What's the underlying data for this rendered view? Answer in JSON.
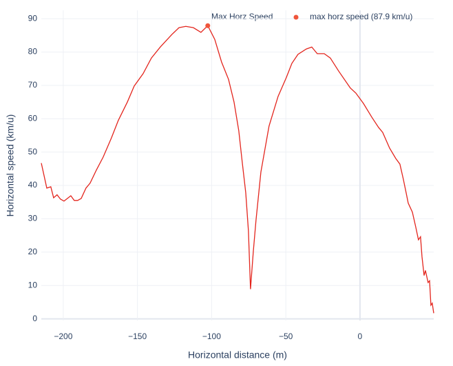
{
  "chart_data": {
    "type": "line",
    "xlabel": "Horizontal distance (m)",
    "ylabel": "Horizontal speed (km/u)",
    "legend_title": "Max Horz Speed",
    "legend_position": "top-right",
    "grid": true,
    "xlim": [
      -214.8,
      49.7
    ],
    "ylim": [
      -0.5,
      92.5
    ],
    "xticks": [
      {
        "value": -200,
        "label": "−200"
      },
      {
        "value": -150,
        "label": "−150"
      },
      {
        "value": -100,
        "label": "−100"
      },
      {
        "value": -50,
        "label": "−50"
      },
      0
    ],
    "yticks": [
      0,
      10,
      20,
      30,
      40,
      50,
      60,
      70,
      80,
      90
    ],
    "series": [
      {
        "color": "#e3241c",
        "mode": "lines",
        "x": [
          -214.8,
          -211.1,
          -208.4,
          -206.5,
          -204.2,
          -201.9,
          -199.5,
          -197.2,
          -194.9,
          -192.6,
          -190.3,
          -187.9,
          -184.7,
          -181.9,
          -177.7,
          -173.1,
          -167.5,
          -162.9,
          -156.8,
          -152.2,
          -146.2,
          -140.6,
          -134.6,
          -126.7,
          -122,
          -117.4,
          -112.3,
          -107.2,
          -102.6,
          -97.9,
          -93.3,
          -88.6,
          -84.9,
          -81.7,
          -79.4,
          -77,
          -75.2,
          -73.8,
          -71.9,
          -70.1,
          -66.8,
          -61.3,
          -55.2,
          -49.7,
          -45.9,
          -41.8,
          -36.2,
          -32.5,
          -28.8,
          -24.1,
          -20,
          -14.4,
          -6.5,
          -2.8,
          2.3,
          7.9,
          12.5,
          15.3,
          19.95,
          24.1,
          26.9,
          29.2,
          31.1,
          32.5,
          35.3,
          37.6,
          39.4,
          40.8,
          41.8,
          43.2,
          44.1,
          45.9,
          46.9,
          47.8,
          48.7,
          49.7
        ],
        "values": [
          46.7,
          39.2,
          39.6,
          36.3,
          37.2,
          35.9,
          35.3,
          36.1,
          36.9,
          35.5,
          35.5,
          36.1,
          39.2,
          40.7,
          44.6,
          48.5,
          54.3,
          59.5,
          65,
          69.8,
          73.5,
          78.2,
          81.5,
          85.3,
          87.3,
          87.7,
          87.3,
          85.9,
          87.9,
          83.8,
          77,
          71.8,
          65,
          56.4,
          47.1,
          37.8,
          26.4,
          8.9,
          20.2,
          29.5,
          44,
          57.8,
          66.7,
          72.3,
          76.6,
          79.3,
          80.9,
          81.5,
          79.5,
          79.5,
          78.2,
          74.3,
          69.2,
          67.7,
          64.6,
          60.5,
          57.4,
          55.9,
          51.2,
          48.1,
          46.4,
          41.9,
          37.8,
          34.7,
          32,
          27.5,
          23.7,
          24.6,
          18.6,
          13,
          14.5,
          10.9,
          11.4,
          4.1,
          4.7,
          1.7
        ]
      },
      {
        "name": "max horz speed (87.9 km/u)",
        "color": "#ef553b",
        "mode": "markers",
        "x": [
          -102.6
        ],
        "values": [
          87.9
        ]
      }
    ]
  }
}
